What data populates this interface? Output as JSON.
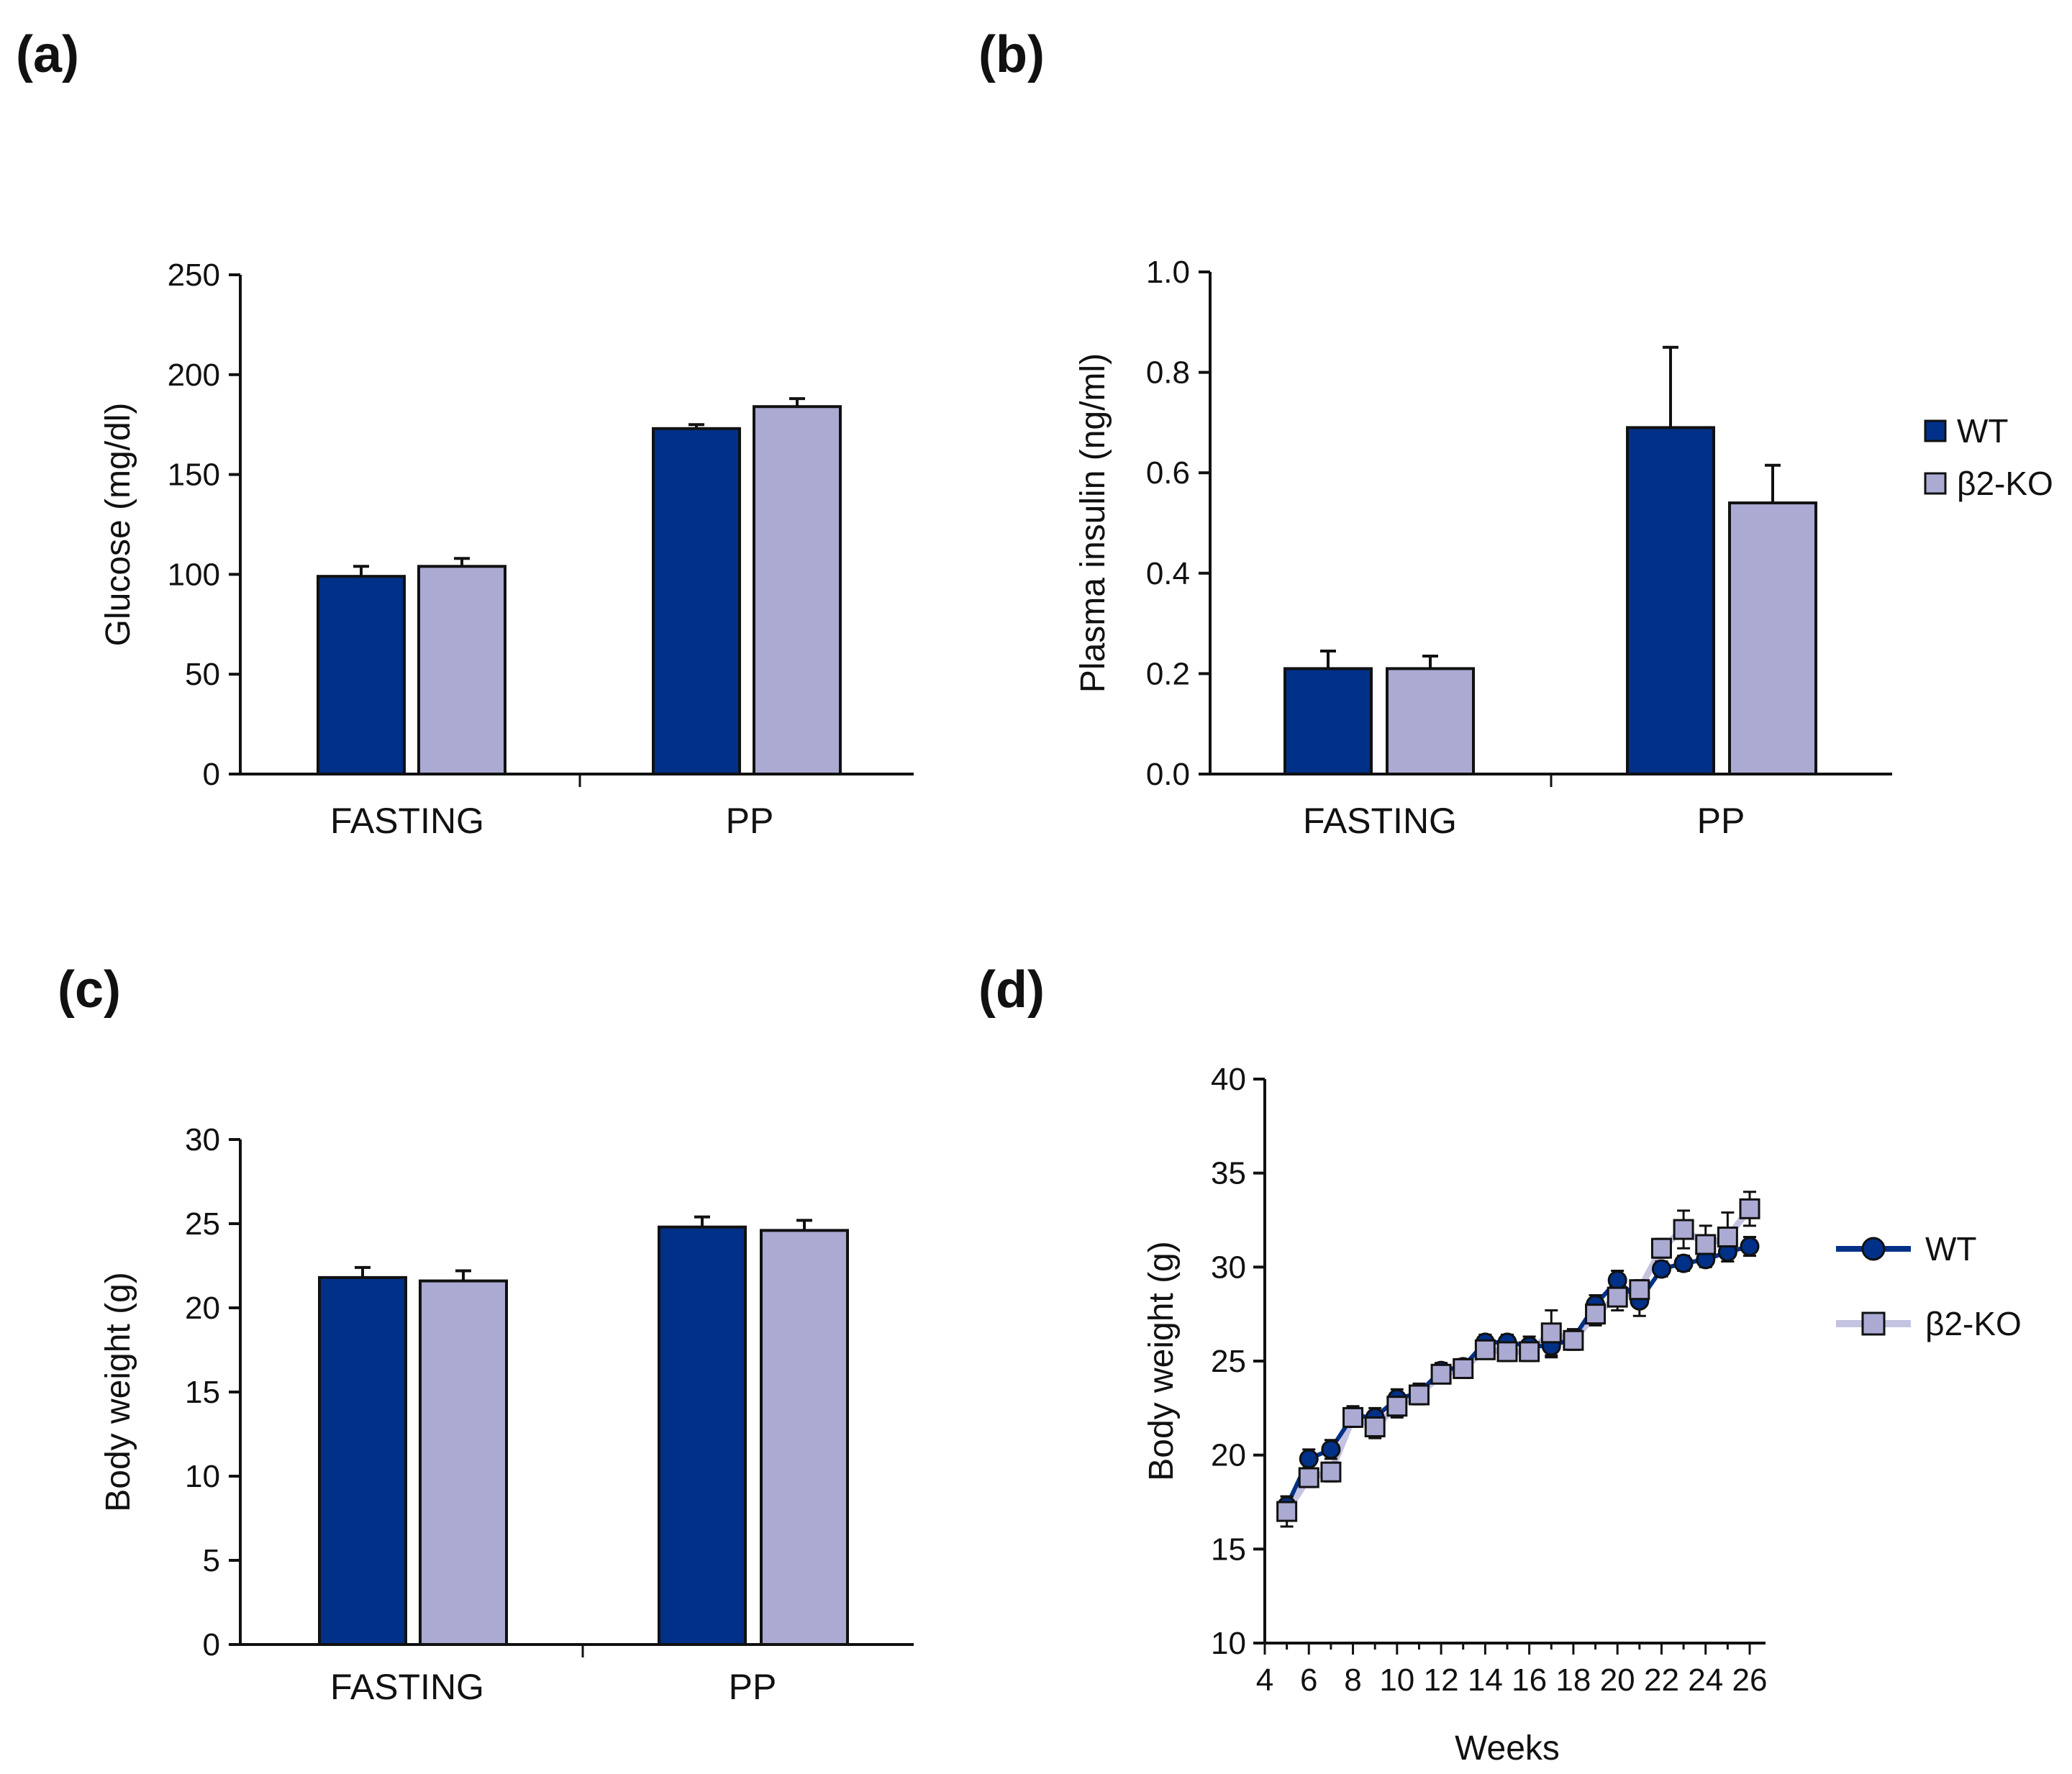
{
  "colors": {
    "wt": "#003087",
    "ko": "#abaad3",
    "ko_line": "#c4c3e2",
    "axis": "#111111",
    "background": "#ffffff"
  },
  "legend": {
    "wt": "WT",
    "ko": "β2-KO"
  },
  "chart_data": [
    {
      "panel": "(a)",
      "type": "bar",
      "categories": [
        "FASTING",
        "PP"
      ],
      "series": [
        {
          "name": "WT",
          "values": [
            99,
            173
          ],
          "errors": [
            5,
            2
          ]
        },
        {
          "name": "β2-KO",
          "values": [
            104,
            184
          ],
          "errors": [
            4,
            4
          ]
        }
      ],
      "xlabel": "",
      "ylabel": "Glucose (mg/dl)",
      "ylim": [
        0,
        250
      ],
      "yticks": [
        "0",
        "50",
        "100",
        "150",
        "200",
        "250"
      ],
      "legend": "none"
    },
    {
      "panel": "(b)",
      "type": "bar",
      "categories": [
        "FASTING",
        "PP"
      ],
      "series": [
        {
          "name": "WT",
          "values": [
            0.21,
            0.69
          ],
          "errors": [
            0.035,
            0.16
          ]
        },
        {
          "name": "β2-KO",
          "values": [
            0.21,
            0.54
          ],
          "errors": [
            0.025,
            0.075
          ]
        }
      ],
      "xlabel": "",
      "ylabel": "Plasma insulin (ng/ml)",
      "ylim": [
        0,
        1.0
      ],
      "yticks": [
        "0.0",
        "0.2",
        "0.4",
        "0.6",
        "0.8",
        "1.0"
      ],
      "legend": "right"
    },
    {
      "panel": "(c)",
      "type": "bar",
      "categories": [
        "FASTING",
        "PP"
      ],
      "series": [
        {
          "name": "WT",
          "values": [
            21.8,
            24.8
          ],
          "errors": [
            0.6,
            0.6
          ]
        },
        {
          "name": "β2-KO",
          "values": [
            21.6,
            24.6
          ],
          "errors": [
            0.6,
            0.6
          ]
        }
      ],
      "xlabel": "",
      "ylabel": "Body weight  (g)",
      "ylim": [
        0,
        30
      ],
      "yticks": [
        "0",
        "5",
        "10",
        "15",
        "20",
        "25",
        "30"
      ],
      "legend": "none"
    },
    {
      "panel": "(d)",
      "type": "line",
      "x": [
        5,
        6,
        7,
        8,
        9,
        10,
        11,
        12,
        13,
        14,
        15,
        16,
        17,
        18,
        19,
        20,
        21,
        22,
        23,
        24,
        25,
        26
      ],
      "series": [
        {
          "name": "WT",
          "marker": "circle",
          "values": [
            17.3,
            19.8,
            20.3,
            22.1,
            22.0,
            23.0,
            23.3,
            24.5,
            24.7,
            26.0,
            26.0,
            25.8,
            25.8,
            26.2,
            28.0,
            29.3,
            28.2,
            29.9,
            30.2,
            30.4,
            30.8,
            31.1
          ],
          "errors": [
            0.5,
            0.5,
            0.5,
            0.5,
            0.5,
            0.5,
            0.5,
            0.4,
            0.4,
            0.4,
            0.4,
            0.5,
            0.6,
            0.5,
            0.5,
            0.5,
            0.8,
            0.4,
            0.4,
            0.4,
            0.5,
            0.5
          ]
        },
        {
          "name": "β2-KO",
          "marker": "square",
          "values": [
            17.0,
            18.8,
            19.1,
            22.0,
            21.5,
            22.6,
            23.2,
            24.3,
            24.6,
            25.6,
            25.5,
            25.5,
            26.5,
            26.1,
            27.5,
            28.4,
            28.8,
            31.0,
            32.0,
            31.2,
            31.6,
            33.1
          ],
          "errors": [
            0.8,
            0.5,
            0.5,
            0.5,
            0.6,
            0.6,
            0.5,
            0.4,
            0.5,
            0.4,
            0.5,
            0.5,
            1.2,
            0.5,
            0.6,
            0.7,
            0.5,
            0.5,
            1.0,
            1.0,
            1.3,
            0.9
          ]
        }
      ],
      "xlabel": "Weeks",
      "ylabel": "Body weight (g)",
      "xlim": [
        4,
        26
      ],
      "ylim": [
        10,
        40
      ],
      "xticks": [
        "4",
        "6",
        "8",
        "10",
        "12",
        "14",
        "16",
        "18",
        "20",
        "22",
        "24",
        "26"
      ],
      "yticks": [
        "10",
        "15",
        "20",
        "25",
        "30",
        "35",
        "40"
      ],
      "legend": "right"
    }
  ]
}
